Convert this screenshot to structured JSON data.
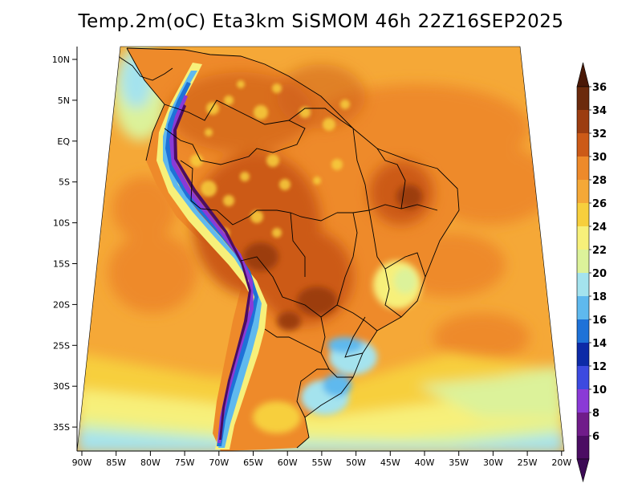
{
  "title": "Temp.2m(oC) Eta3km SiSMOM 46h 22Z16SEP2025",
  "lat_labels": [
    "10N",
    "5N",
    "EQ",
    "5S",
    "10S",
    "15S",
    "20S",
    "25S",
    "30S",
    "35S"
  ],
  "lon_labels": [
    "90W",
    "85W",
    "80W",
    "75W",
    "70W",
    "65W",
    "60W",
    "55W",
    "50W",
    "45W",
    "40W",
    "35W",
    "30W",
    "25W",
    "20W"
  ],
  "colorbar": {
    "labels": [
      "36",
      "34",
      "32",
      "30",
      "28",
      "26",
      "24",
      "22",
      "20",
      "18",
      "16",
      "14",
      "12",
      "10",
      "8",
      "6"
    ],
    "colors": [
      "#6b2a0c",
      "#9c3d10",
      "#cc5a17",
      "#ee8a2a",
      "#f5a837",
      "#f7cf3d",
      "#f7f07a",
      "#dcf29a",
      "#a4e3ee",
      "#5fb9ee",
      "#1e72d8",
      "#0c2aa7",
      "#3c4ae0",
      "#8a3ad6",
      "#701c8a",
      "#4b0d63"
    ],
    "top_color": "#4a1806",
    "bottom_color": "#3c0a55"
  }
}
